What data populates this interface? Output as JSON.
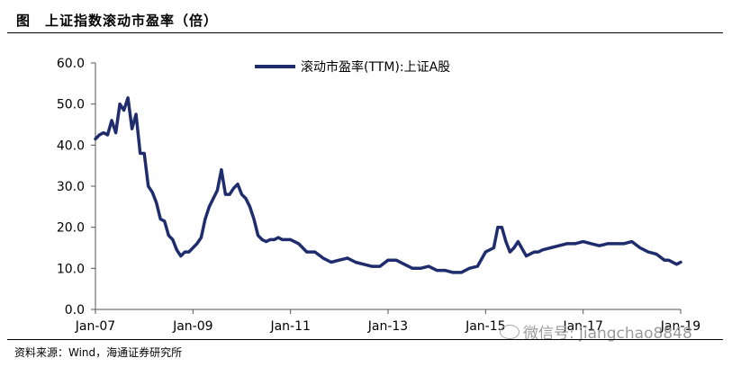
{
  "header": {
    "title": "图　上证指数滚动市盈率（倍）"
  },
  "footer": {
    "source": "资料来源：Wind，海通证券研究所"
  },
  "watermark": {
    "text": "微信号: jiangchao8848"
  },
  "chart_data": {
    "type": "line",
    "title": "",
    "xlabel": "",
    "ylabel": "",
    "ylim": [
      0,
      60
    ],
    "yticks": [
      "0.0",
      "10.0",
      "20.0",
      "30.0",
      "40.0",
      "50.0",
      "60.0"
    ],
    "xticks": [
      "Jan-07",
      "Jan-09",
      "Jan-11",
      "Jan-13",
      "Jan-15",
      "Jan-17",
      "Jan-19"
    ],
    "legend": {
      "position": "top-center"
    },
    "grid": false,
    "colors": {
      "series": "#1f2d6e"
    },
    "series": [
      {
        "name": "滚动市盈率(TTM):上证A股",
        "x": [
          "2007-01",
          "2007-02",
          "2007-03",
          "2007-04",
          "2007-05",
          "2007-06",
          "2007-07",
          "2007-08",
          "2007-09",
          "2007-10",
          "2007-11",
          "2007-12",
          "2008-01",
          "2008-02",
          "2008-03",
          "2008-04",
          "2008-05",
          "2008-06",
          "2008-07",
          "2008-08",
          "2008-09",
          "2008-10",
          "2008-11",
          "2008-12",
          "2009-01",
          "2009-02",
          "2009-03",
          "2009-04",
          "2009-05",
          "2009-06",
          "2009-07",
          "2009-08",
          "2009-09",
          "2009-10",
          "2009-11",
          "2009-12",
          "2010-01",
          "2010-02",
          "2010-03",
          "2010-04",
          "2010-05",
          "2010-06",
          "2010-07",
          "2010-08",
          "2010-09",
          "2010-10",
          "2010-11",
          "2010-12",
          "2011-01",
          "2011-03",
          "2011-05",
          "2011-07",
          "2011-09",
          "2011-11",
          "2012-01",
          "2012-03",
          "2012-05",
          "2012-07",
          "2012-09",
          "2012-11",
          "2013-01",
          "2013-03",
          "2013-05",
          "2013-07",
          "2013-09",
          "2013-11",
          "2014-01",
          "2014-03",
          "2014-05",
          "2014-07",
          "2014-09",
          "2014-11",
          "2015-01",
          "2015-03",
          "2015-04",
          "2015-05",
          "2015-06",
          "2015-07",
          "2015-08",
          "2015-09",
          "2015-11",
          "2016-01",
          "2016-02",
          "2016-03",
          "2016-05",
          "2016-07",
          "2016-09",
          "2016-11",
          "2017-01",
          "2017-03",
          "2017-05",
          "2017-07",
          "2017-09",
          "2017-11",
          "2018-01",
          "2018-03",
          "2018-05",
          "2018-07",
          "2018-09",
          "2018-10",
          "2018-12",
          "2019-01"
        ],
        "values": [
          41.5,
          42.5,
          43,
          42.5,
          46,
          43,
          50,
          48.5,
          51.5,
          44,
          47.5,
          38,
          38,
          30,
          28.5,
          26,
          22,
          21.5,
          18,
          17,
          14.5,
          13,
          14,
          14,
          15,
          16,
          17.5,
          22,
          25,
          27,
          29,
          34,
          28,
          28,
          29.5,
          30.5,
          28,
          27,
          25,
          22,
          18,
          17,
          16.5,
          17,
          17,
          17.5,
          17,
          17,
          17,
          16,
          14,
          14,
          12.5,
          11.5,
          12,
          12.5,
          11.5,
          11,
          10.5,
          10.5,
          12,
          12,
          11,
          10,
          10,
          10.5,
          9.5,
          9.5,
          9,
          9,
          10,
          10.5,
          14,
          15,
          20,
          20,
          16.5,
          14,
          15,
          16.5,
          13,
          14,
          14,
          14.5,
          15,
          15.5,
          16,
          16,
          16.5,
          16,
          15.5,
          16,
          16,
          16,
          16.5,
          15,
          14,
          13.5,
          12,
          12,
          11,
          11.5
        ]
      }
    ]
  }
}
